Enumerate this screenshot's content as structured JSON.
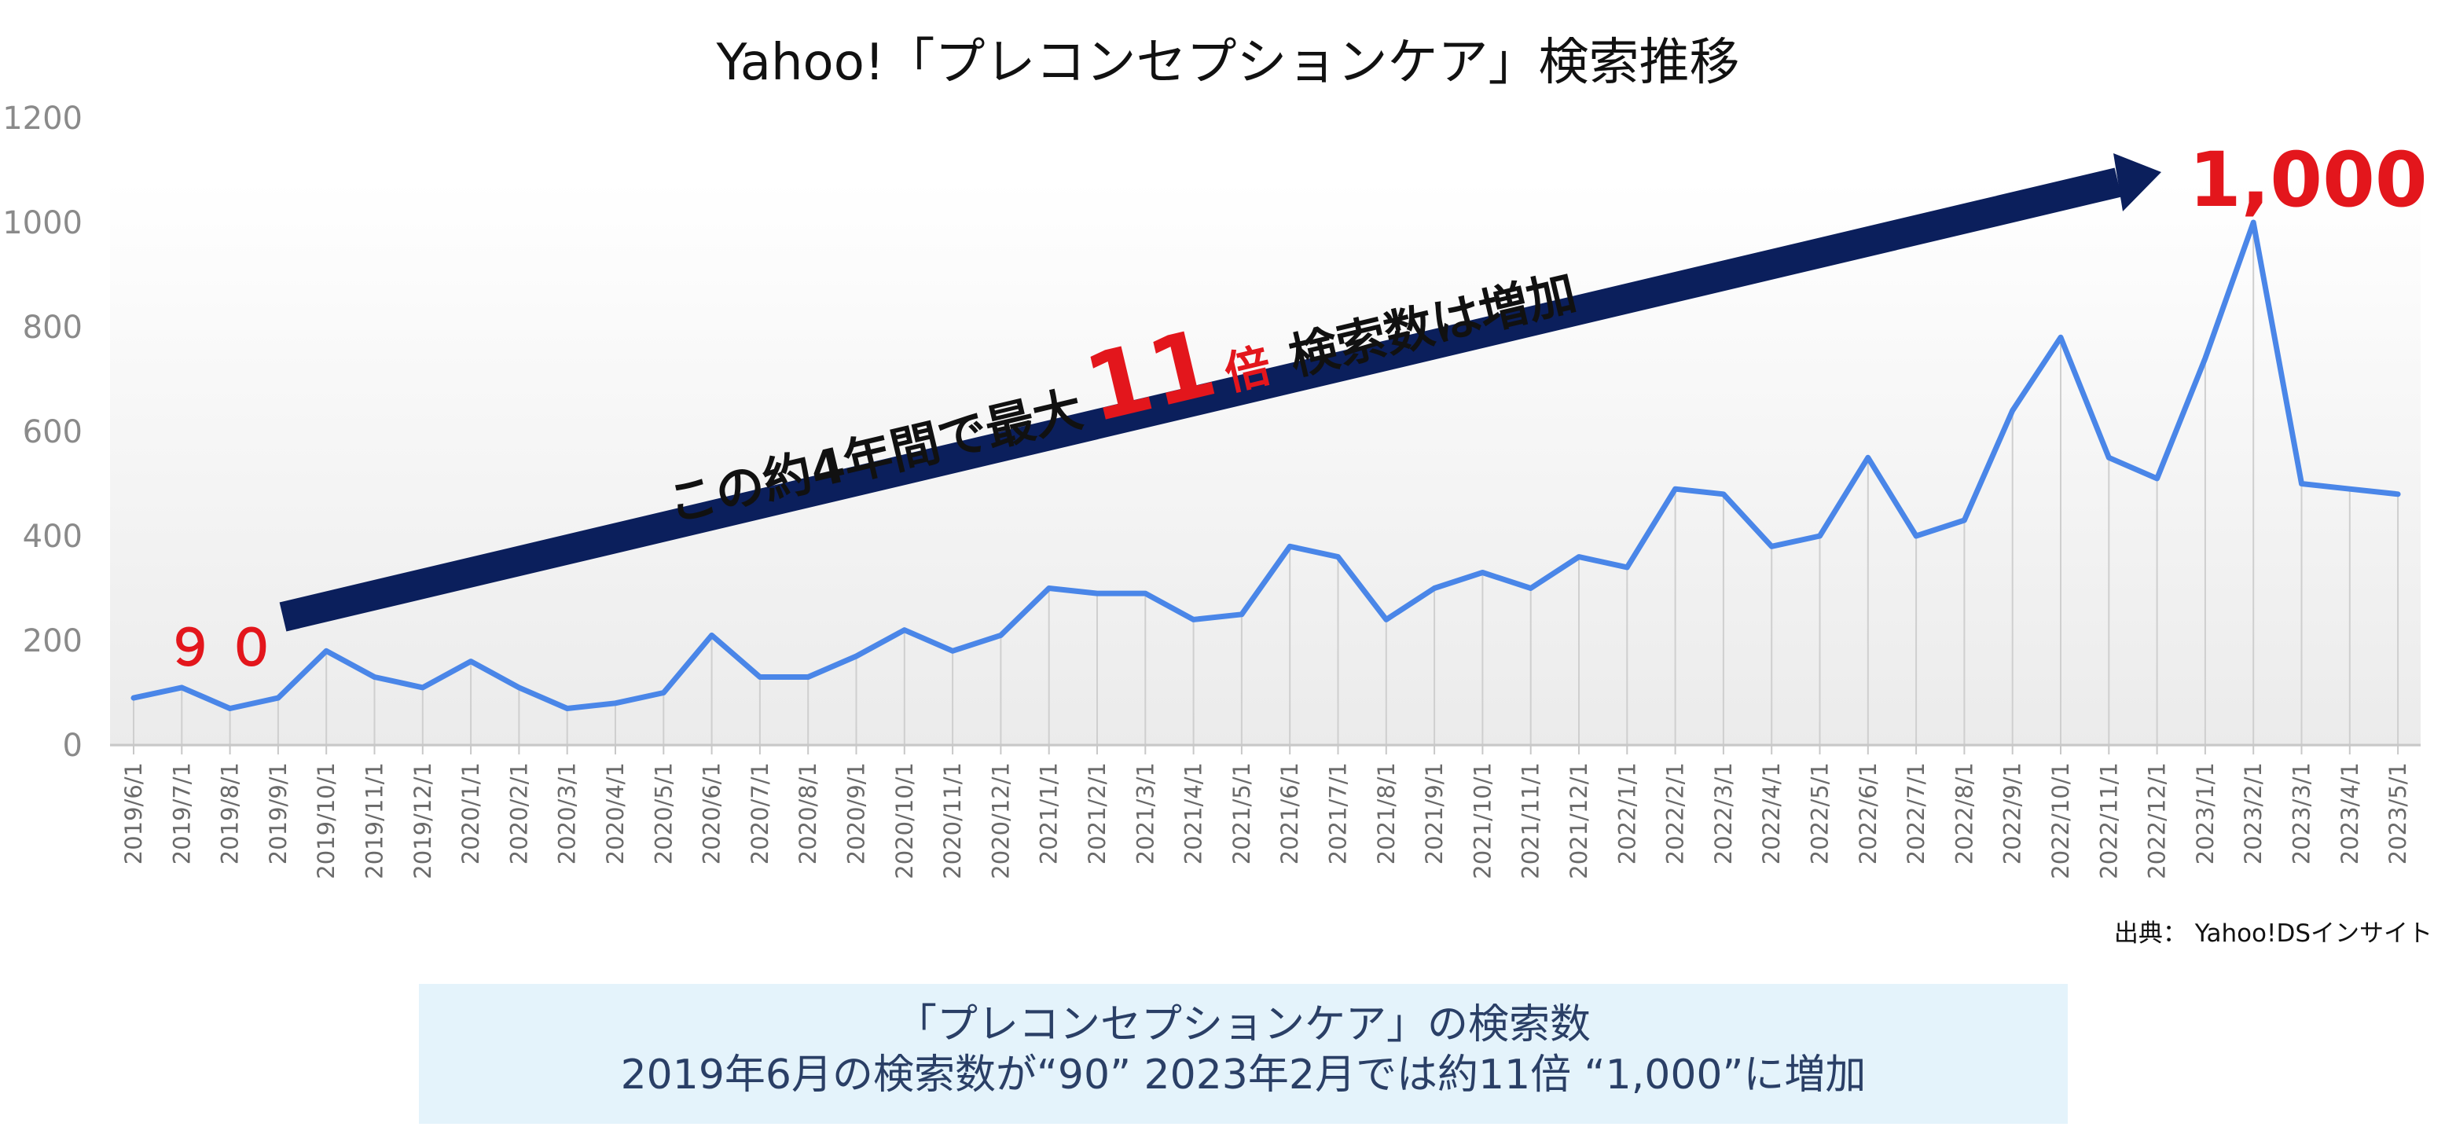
{
  "title": "Yahoo!「プレコンセプションケア」検索推移",
  "source": "出典： Yahoo!DSインサイト",
  "colors": {
    "line": "#4a86e8",
    "arrow": "#0b1f5c",
    "highlight": "#e3161c",
    "info_bg": "#e4f3fb"
  },
  "annotations": {
    "arrow_text": "この約4年間で最大",
    "arrow_multiplier": "11",
    "arrow_unit": "倍",
    "arrow_suffix": "検索数は増加",
    "start_label": "９０",
    "peak_label": "1,000"
  },
  "info": {
    "line1": "「プレコンセプションケア」の検索数",
    "line2": "2019年6月の検索数が“90” 2023年2月では約11倍 “1,000”に増加"
  },
  "chart_data": {
    "type": "area",
    "title": "Yahoo!「プレコンセプションケア」検索推移",
    "xlabel": "",
    "ylabel": "",
    "ylim": [
      0,
      1200
    ],
    "yticks": [
      "0",
      "200",
      "400",
      "600",
      "800",
      "1000",
      "1200"
    ],
    "grid": false,
    "categories": [
      "2019/6/1",
      "2019/7/1",
      "2019/8/1",
      "2019/9/1",
      "2019/10/1",
      "2019/11/1",
      "2019/12/1",
      "2020/1/1",
      "2020/2/1",
      "2020/3/1",
      "2020/4/1",
      "2020/5/1",
      "2020/6/1",
      "2020/7/1",
      "2020/8/1",
      "2020/9/1",
      "2020/10/1",
      "2020/11/1",
      "2020/12/1",
      "2021/1/1",
      "2021/2/1",
      "2021/3/1",
      "2021/4/1",
      "2021/5/1",
      "2021/6/1",
      "2021/7/1",
      "2021/8/1",
      "2021/9/1",
      "2021/10/1",
      "2021/11/1",
      "2021/12/1",
      "2022/1/1",
      "2022/2/1",
      "2022/3/1",
      "2022/4/1",
      "2022/5/1",
      "2022/6/1",
      "2022/7/1",
      "2022/8/1",
      "2022/9/1",
      "2022/10/1",
      "2022/11/1",
      "2022/12/1",
      "2023/1/1",
      "2023/2/1",
      "2023/3/1",
      "2023/4/1",
      "2023/5/1"
    ],
    "values": [
      90,
      110,
      70,
      90,
      180,
      130,
      110,
      160,
      110,
      70,
      80,
      100,
      210,
      130,
      130,
      170,
      220,
      180,
      210,
      300,
      290,
      290,
      240,
      250,
      380,
      360,
      240,
      300,
      330,
      300,
      360,
      340,
      490,
      480,
      380,
      400,
      550,
      400,
      430,
      640,
      780,
      550,
      510,
      740,
      1000,
      500,
      490,
      480
    ]
  }
}
